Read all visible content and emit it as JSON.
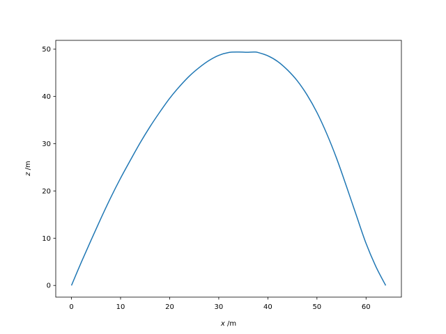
{
  "chart_data": {
    "type": "line",
    "title": "",
    "xlabel": {
      "symbol": "x",
      "unit": " /m"
    },
    "ylabel": {
      "symbol": "z",
      "unit": " /m"
    },
    "xlim": [
      -3.2,
      67.2
    ],
    "ylim": [
      -2.47,
      51.87
    ],
    "xticks": [
      0,
      10,
      20,
      30,
      40,
      50,
      60
    ],
    "yticks": [
      0,
      10,
      20,
      30,
      40,
      50
    ],
    "grid": false,
    "legend": "none",
    "series": [
      {
        "color": "#1f77b4",
        "x": [
          0,
          2,
          4,
          6,
          8,
          10,
          12,
          14,
          16,
          18,
          20,
          22,
          24,
          26,
          28,
          30,
          32,
          34,
          36,
          37.2,
          38,
          40,
          42,
          44,
          46,
          48,
          50,
          52,
          54,
          56,
          58,
          60,
          62,
          64
        ],
        "y": [
          0,
          4.9,
          9.6,
          14.2,
          18.6,
          22.7,
          26.5,
          30.2,
          33.6,
          36.7,
          39.6,
          42.1,
          44.3,
          46.1,
          47.6,
          48.7,
          49.3,
          49.4,
          49.35,
          49.4,
          49.3,
          48.6,
          47.4,
          45.6,
          43.3,
          40.3,
          36.6,
          32.1,
          26.9,
          21.0,
          14.9,
          8.9,
          4.0,
          0
        ]
      }
    ]
  }
}
